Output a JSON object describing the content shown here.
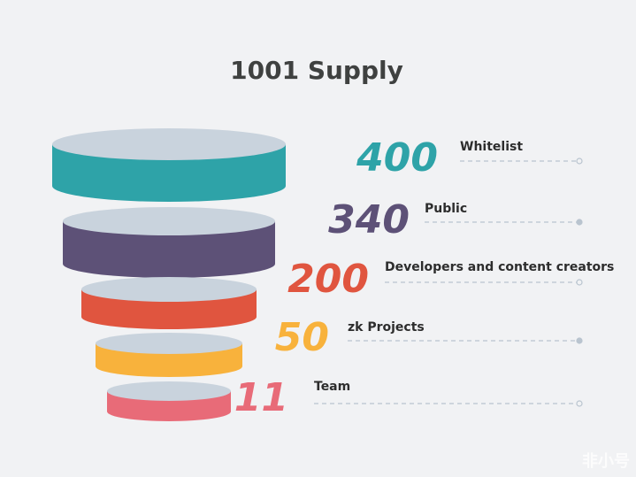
{
  "chart_data": {
    "type": "funnel",
    "title": "1001 Supply",
    "categories": [
      "Whitelist",
      "Public",
      "Developers and content creators",
      "zk Projects",
      "Team"
    ],
    "values": [
      400,
      340,
      200,
      50,
      11
    ],
    "colors": [
      "#2ea3a8",
      "#5d5177",
      "#e0553f",
      "#f8b23c",
      "#e86b78"
    ],
    "watermark": "非小号"
  }
}
